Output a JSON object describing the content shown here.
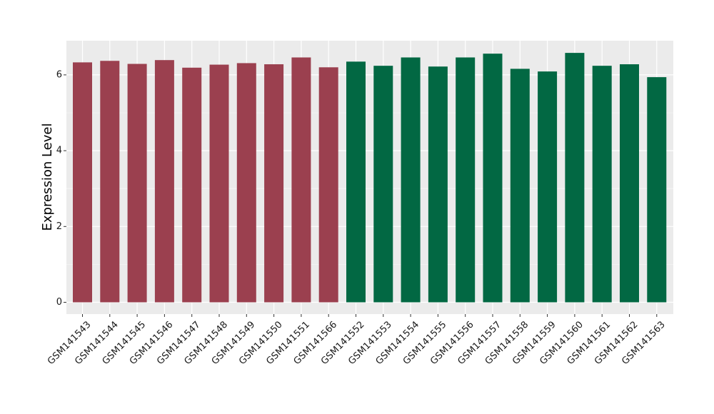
{
  "chart_data": {
    "type": "bar",
    "title": "",
    "xlabel": "",
    "ylabel": "Expression Level",
    "ylim": [
      0,
      6.9
    ],
    "yticks": [
      0,
      2,
      4,
      6
    ],
    "grid": true,
    "legend": "none",
    "categories": [
      "GSM141543",
      "GSM141544",
      "GSM141545",
      "GSM141546",
      "GSM141547",
      "GSM141548",
      "GSM141549",
      "GSM141550",
      "GSM141551",
      "GSM141566",
      "GSM141552",
      "GSM141553",
      "GSM141554",
      "GSM141555",
      "GSM141556",
      "GSM141557",
      "GSM141558",
      "GSM141559",
      "GSM141560",
      "GSM141561",
      "GSM141562",
      "GSM141563"
    ],
    "values": [
      6.33,
      6.37,
      6.29,
      6.39,
      6.19,
      6.27,
      6.31,
      6.28,
      6.46,
      6.2,
      6.35,
      6.24,
      6.46,
      6.22,
      6.46,
      6.56,
      6.16,
      6.09,
      6.58,
      6.24,
      6.28,
      5.94
    ],
    "group_sizes": [
      10,
      12
    ],
    "colors": [
      "#9b404f",
      "#026843"
    ]
  },
  "colors": {
    "panel": "#ebebeb",
    "grid_major": "#ffffff",
    "grid_minor": "#f5f5f5"
  }
}
